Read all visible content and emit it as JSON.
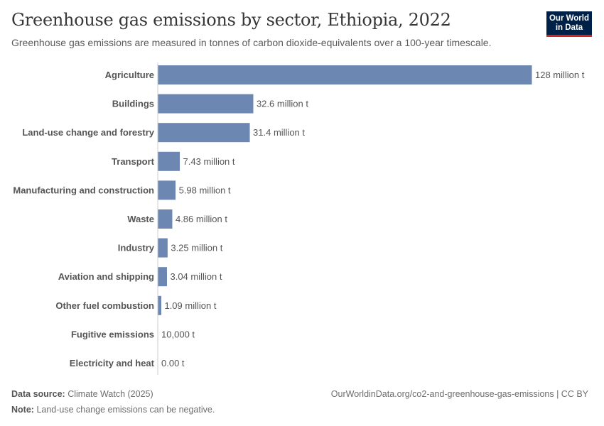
{
  "title": "Greenhouse gas emissions by sector, Ethiopia, 2022",
  "subtitle": "Greenhouse gas emissions are measured in tonnes of carbon dioxide-equivalents over a 100-year timescale.",
  "logo": {
    "line1": "Our World",
    "line2": "in Data"
  },
  "footer": {
    "source_label": "Data source:",
    "source_value": "Climate Watch (2025)",
    "url": "OurWorldinData.org/co2-and-greenhouse-gas-emissions | CC BY",
    "note_label": "Note:",
    "note_value": "Land-use change emissions can be negative."
  },
  "colors": {
    "bar": "#6d87b3",
    "axis": "#cccccc",
    "text": "#555555"
  },
  "chart_data": {
    "type": "bar",
    "orientation": "horizontal",
    "categories": [
      "Agriculture",
      "Buildings",
      "Land-use change and forestry",
      "Transport",
      "Manufacturing and construction",
      "Waste",
      "Industry",
      "Aviation and shipping",
      "Other fuel combustion",
      "Fugitive emissions",
      "Electricity and heat"
    ],
    "values": [
      128000000,
      32600000,
      31400000,
      7430000,
      5980000,
      4860000,
      3250000,
      3040000,
      1090000,
      10000,
      0
    ],
    "value_labels": [
      "128 million t",
      "32.6 million t",
      "31.4 million t",
      "7.43 million t",
      "5.98 million t",
      "4.86 million t",
      "3.25 million t",
      "3.04 million t",
      "1.09 million t",
      "10,000 t",
      "0.00 t"
    ],
    "unit": "t",
    "xlim": [
      0,
      128000000
    ]
  }
}
